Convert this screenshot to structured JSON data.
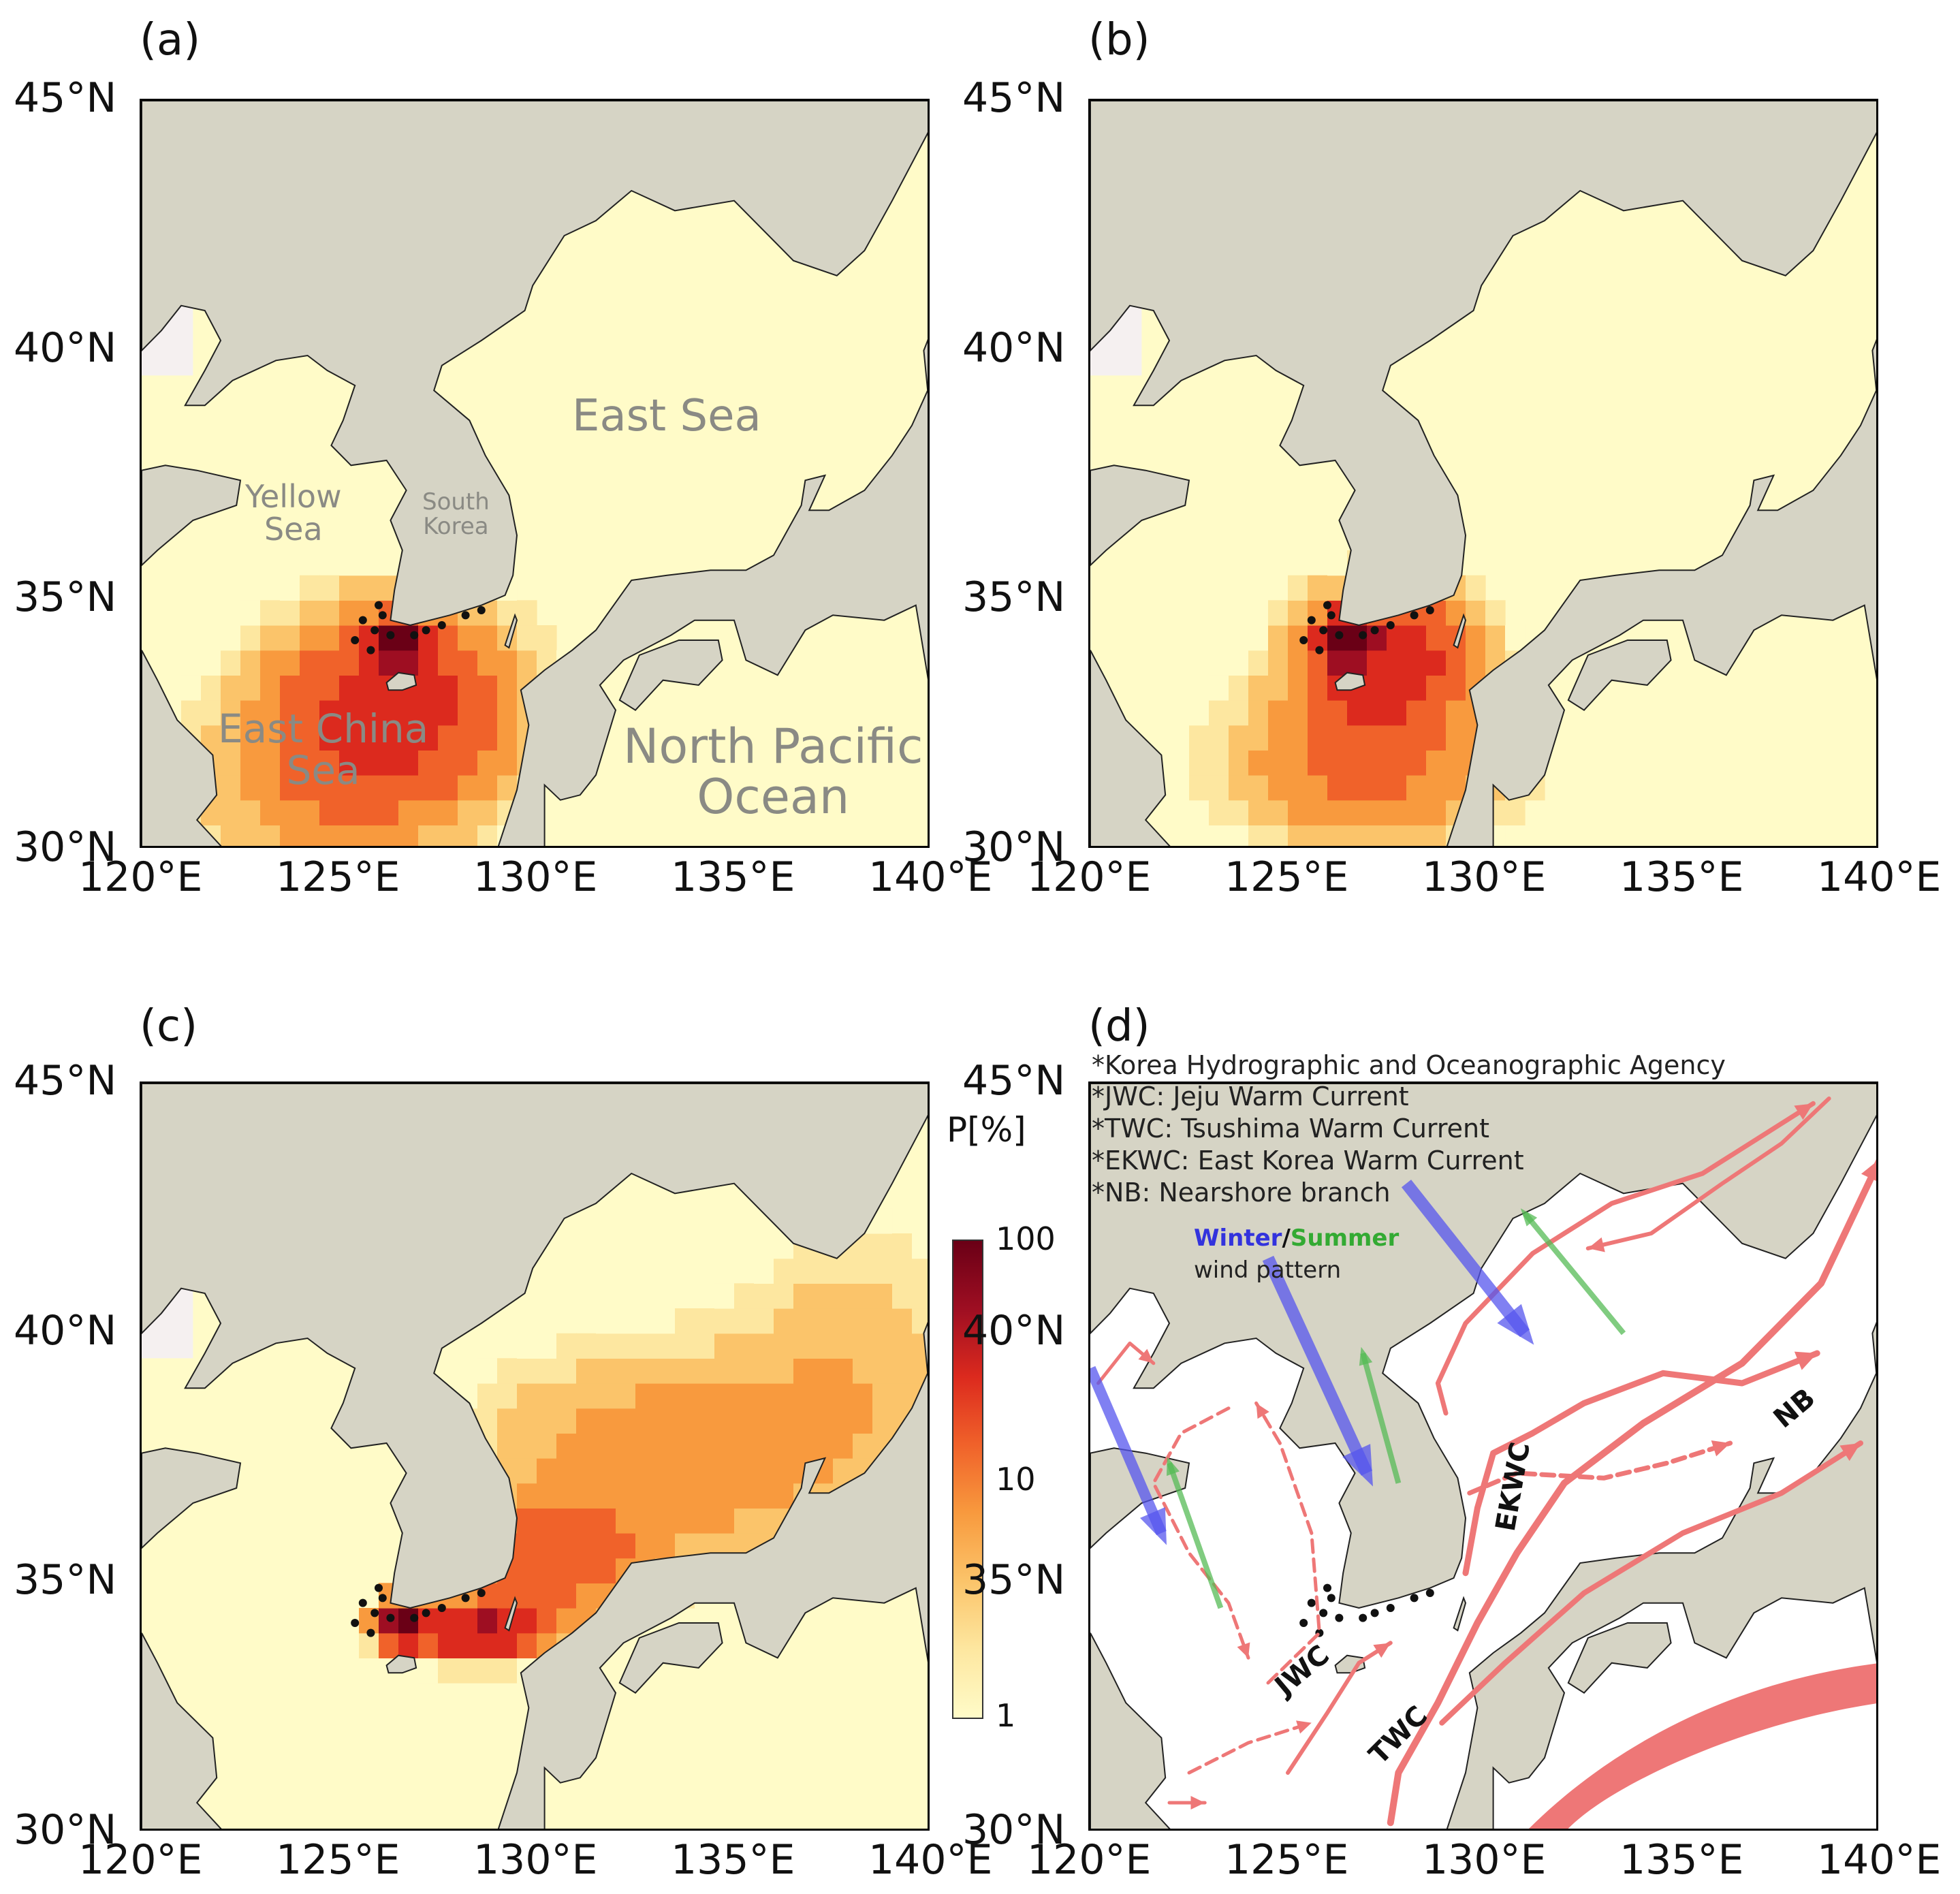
{
  "panels": {
    "a": {
      "label": "(a)"
    },
    "b": {
      "label": "(b)"
    },
    "c": {
      "label": "(c)"
    },
    "d": {
      "label": "(d)"
    }
  },
  "axes": {
    "lat_ticks": [
      "45°N",
      "40°N",
      "35°N",
      "30°N"
    ],
    "lon_ticks": [
      "120°E",
      "125°E",
      "130°E",
      "135°E",
      "140°E"
    ],
    "lat_range": [
      30,
      45
    ],
    "lon_range": [
      120,
      140
    ]
  },
  "place_labels": {
    "east_sea": "East Sea",
    "yellow_sea": "Yellow\nSea",
    "south_korea": "South\nKorea",
    "east_china_sea": "East China\nSea",
    "north_pacific": "North Pacific\nOcean"
  },
  "colorbar": {
    "title": "P[%]",
    "ticks": [
      "100",
      "10",
      "1"
    ],
    "scale": "log",
    "colors": [
      "#fffbc8",
      "#fde7a0",
      "#fbc46a",
      "#f89a3e",
      "#f0622a",
      "#dc2a1e",
      "#9e0e22",
      "#6a0016"
    ]
  },
  "panel_d": {
    "notes": [
      "*Korea Hydrographic and Oceanographic Agency",
      "*JWC: Jeju Warm Current",
      "*TWC: Tsushima Warm Current",
      "*EKWC: East Korea Warm Current",
      "*NB: Nearshore branch"
    ],
    "legend_winter": "Winter",
    "legend_sep": "/",
    "legend_summer": "Summer",
    "legend_wind": "wind pattern",
    "winter_color": "#5555ee",
    "summer_color": "#55bb55",
    "current_color": "#ee7777",
    "currents": {
      "jwc": "JWC",
      "twc": "TWC",
      "ekwc": "EKWC",
      "nb": "NB"
    }
  },
  "colors": {
    "land": "#d6d4c5",
    "sea": "#fffbc8",
    "no_data": "#f5f0f0"
  }
}
